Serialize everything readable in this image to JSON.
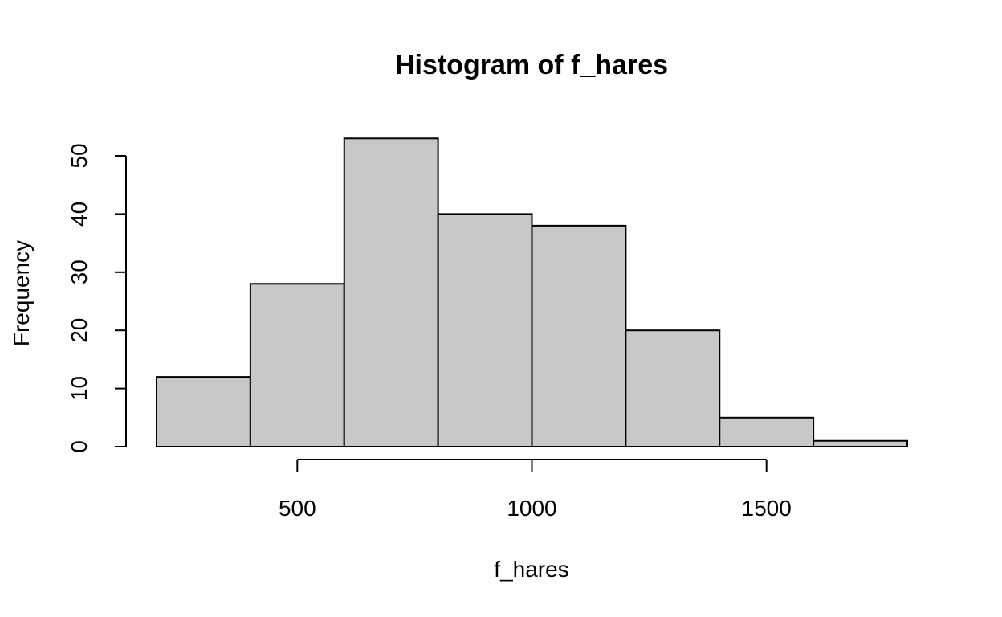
{
  "chart_data": {
    "type": "bar",
    "title": "Histogram of f_hares",
    "xlabel": "f_hares",
    "ylabel": "Frequency",
    "bins": [
      {
        "start": 200,
        "end": 400,
        "count": 12
      },
      {
        "start": 400,
        "end": 600,
        "count": 28
      },
      {
        "start": 600,
        "end": 800,
        "count": 53
      },
      {
        "start": 800,
        "end": 1000,
        "count": 40
      },
      {
        "start": 1000,
        "end": 1200,
        "count": 38
      },
      {
        "start": 1200,
        "end": 1400,
        "count": 20
      },
      {
        "start": 1400,
        "end": 1600,
        "count": 5
      },
      {
        "start": 1600,
        "end": 1800,
        "count": 1
      }
    ],
    "xlim": [
      200,
      1800
    ],
    "ylim": [
      0,
      50
    ],
    "x_ticks": [
      500,
      1000,
      1500
    ],
    "x_tick_labels": [
      "500",
      "1000",
      "1500"
    ],
    "y_ticks": [
      0,
      10,
      20,
      30,
      40,
      50
    ],
    "y_tick_labels": [
      "0",
      "10",
      "20",
      "30",
      "40",
      "50"
    ],
    "grid": false,
    "legend": "none",
    "bar_color": "#c8c8c8",
    "edge_color": "#000000"
  }
}
